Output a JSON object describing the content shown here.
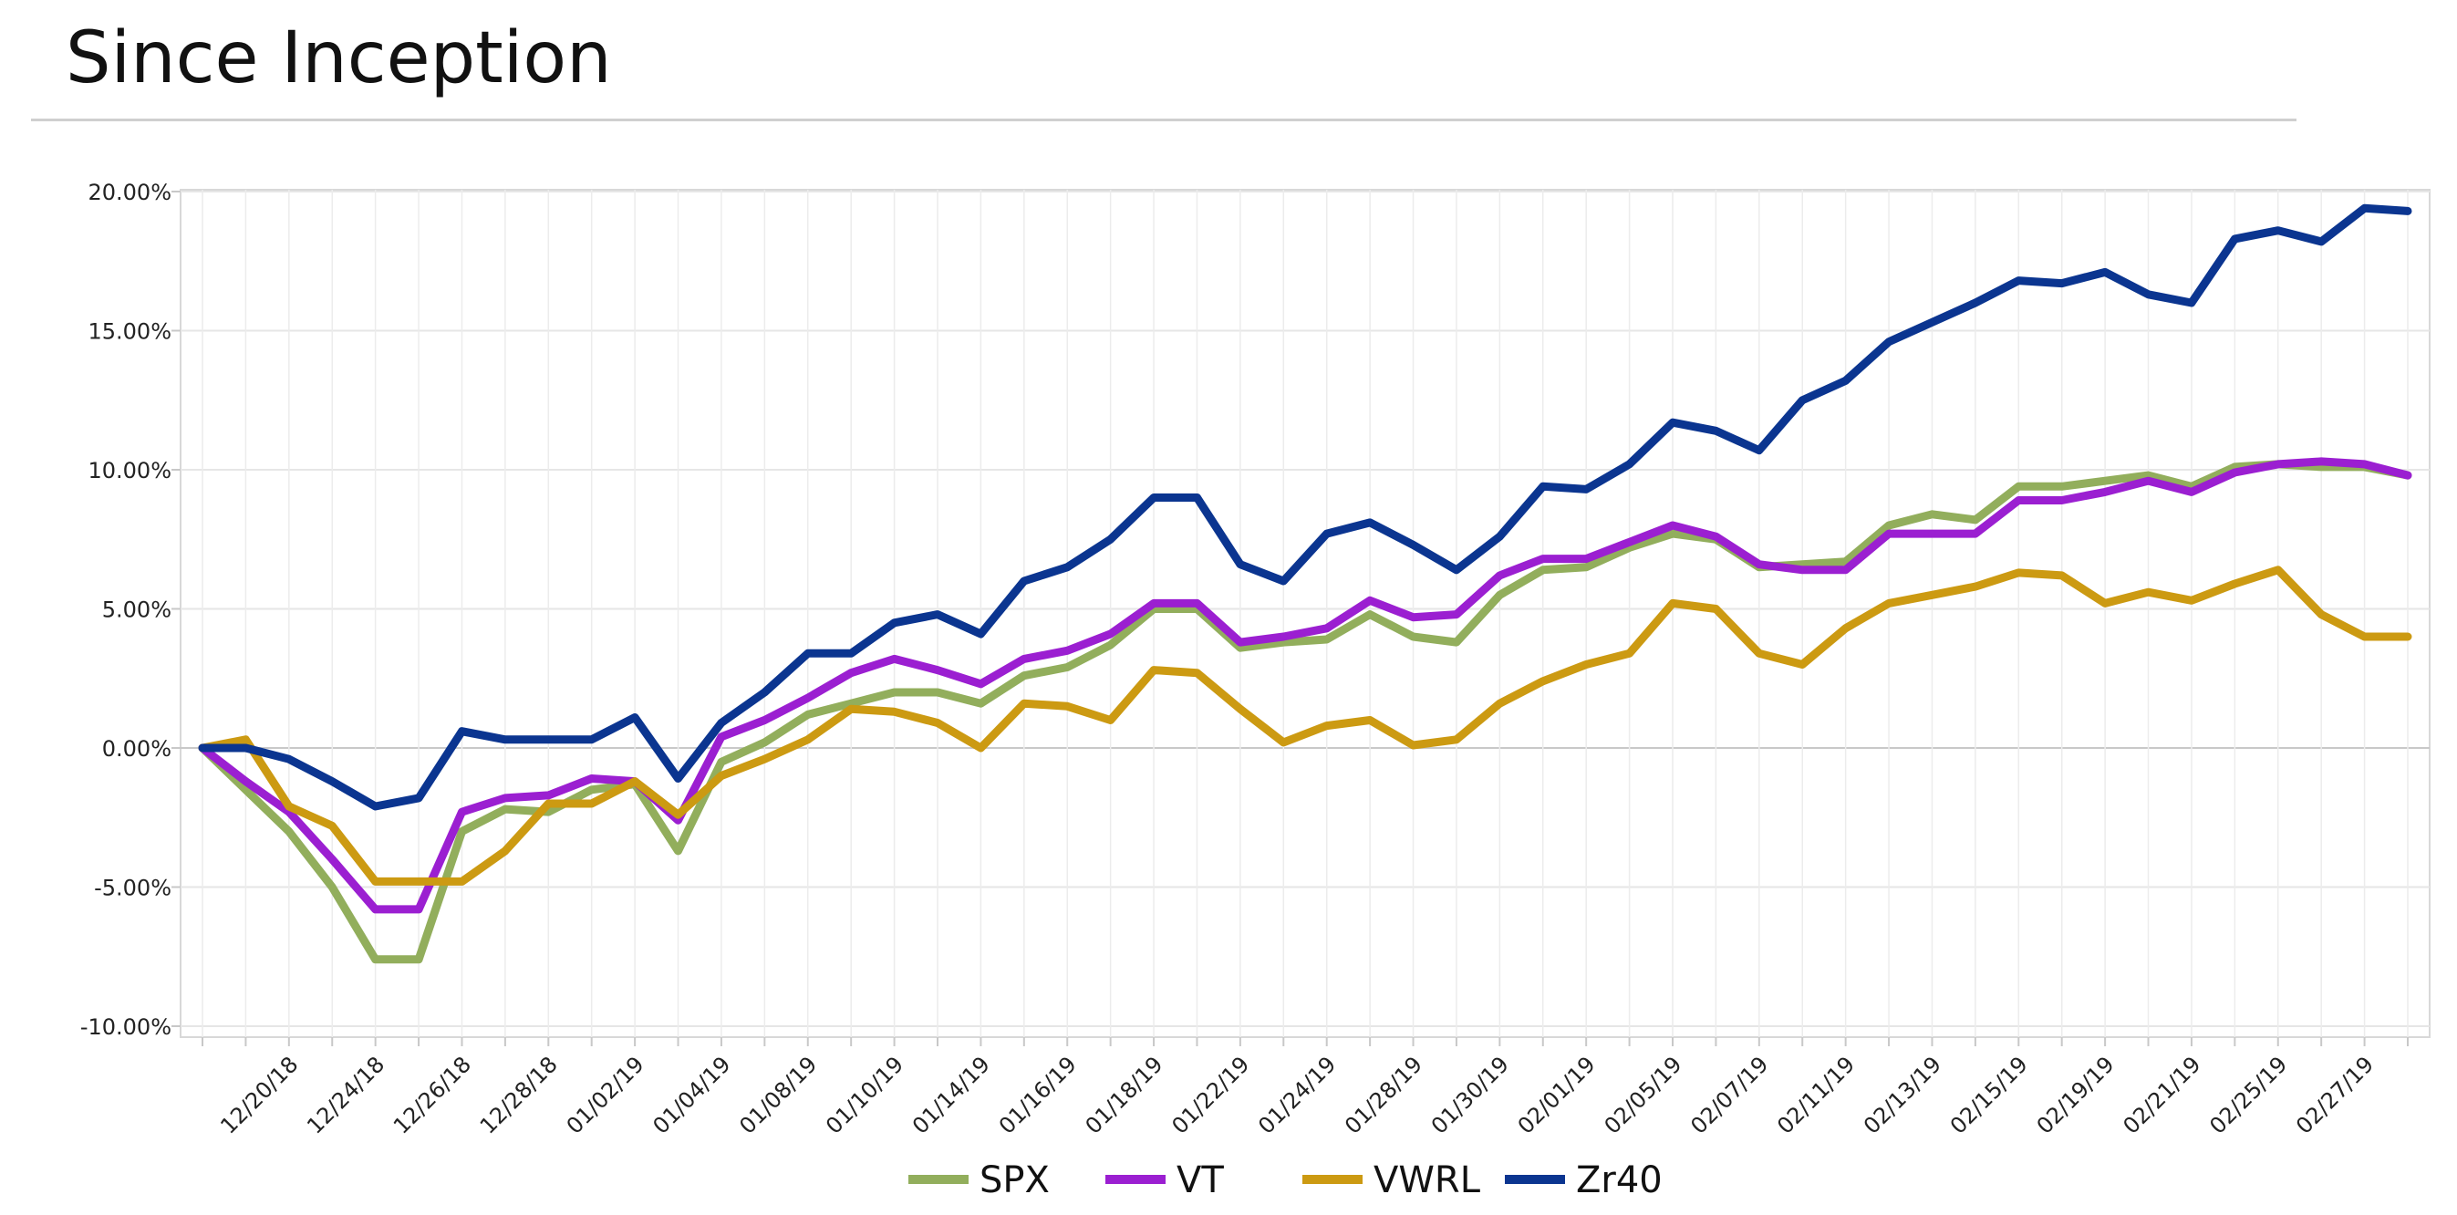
{
  "title": "Since Inception",
  "colors": {
    "SPX": "#92ae5c",
    "VT": "#9b1fd1",
    "VWRL": "#cc9a12",
    "Zr40": "#0b3590"
  },
  "chart_data": {
    "type": "line",
    "title": "Since Inception",
    "xlabel": "",
    "ylabel": "",
    "ylim": [
      -10,
      20
    ],
    "y_ticks": [
      "20.00%",
      "15.00%",
      "10.00%",
      "5.00%",
      "0.00%",
      "-5.00%",
      "-10.00%"
    ],
    "y_tick_values": [
      20,
      15,
      10,
      5,
      0,
      -5,
      -10
    ],
    "x_tick_labels": [
      "12/20/18",
      "12/24/18",
      "12/26/18",
      "12/28/18",
      "01/02/19",
      "01/04/19",
      "01/08/19",
      "01/10/19",
      "01/14/19",
      "01/16/19",
      "01/18/19",
      "01/22/19",
      "01/24/19",
      "01/28/19",
      "01/30/19",
      "02/01/19",
      "02/05/19",
      "02/07/19",
      "02/11/19",
      "02/13/19",
      "02/15/19",
      "02/19/19",
      "02/21/19",
      "02/25/19",
      "02/27/19"
    ],
    "grid": true,
    "legend_position": "bottom-center",
    "series": [
      {
        "name": "SPX",
        "values": [
          0,
          -1.5,
          -3.0,
          -5.0,
          -7.6,
          -7.6,
          -3.0,
          -2.2,
          -2.3,
          -1.5,
          -1.3,
          -3.7,
          -0.5,
          0.2,
          1.2,
          1.6,
          2.0,
          2.0,
          1.6,
          2.6,
          2.9,
          3.7,
          5.0,
          5.0,
          3.6,
          3.8,
          3.9,
          4.8,
          4.0,
          3.8,
          5.5,
          6.4,
          6.5,
          7.2,
          7.7,
          7.5,
          6.5,
          6.6,
          6.7,
          8.0,
          8.4,
          8.2,
          9.4,
          9.4,
          9.6,
          9.8,
          9.4,
          10.1,
          10.2,
          10.1,
          10.1,
          9.8
        ]
      },
      {
        "name": "VT",
        "values": [
          0,
          -1.2,
          -2.3,
          -4.0,
          -5.8,
          -5.8,
          -2.3,
          -1.8,
          -1.7,
          -1.1,
          -1.2,
          -2.6,
          0.4,
          1.0,
          1.8,
          2.7,
          3.2,
          2.8,
          2.3,
          3.2,
          3.5,
          4.1,
          5.2,
          5.2,
          3.8,
          4.0,
          4.3,
          5.3,
          4.7,
          4.8,
          6.2,
          6.8,
          6.8,
          7.4,
          8.0,
          7.6,
          6.6,
          6.4,
          6.4,
          7.7,
          7.7,
          7.7,
          8.9,
          8.9,
          9.2,
          9.6,
          9.2,
          9.9,
          10.2,
          10.3,
          10.2,
          9.8
        ]
      },
      {
        "name": "VWRL",
        "values": [
          0,
          0.3,
          -2.1,
          -2.8,
          -4.8,
          -4.8,
          -4.8,
          -3.7,
          -2.0,
          -2.0,
          -1.2,
          -2.4,
          -1.0,
          -0.4,
          0.3,
          1.4,
          1.3,
          0.9,
          0.0,
          1.6,
          1.5,
          1.0,
          2.8,
          2.7,
          1.4,
          0.2,
          0.8,
          1.0,
          0.1,
          0.3,
          1.6,
          2.4,
          3.0,
          3.4,
          5.2,
          5.0,
          3.4,
          3.0,
          4.3,
          5.2,
          5.5,
          5.8,
          6.3,
          6.2,
          5.2,
          5.6,
          5.3,
          5.9,
          6.4,
          4.8,
          4.0,
          4.0
        ]
      },
      {
        "name": "Zr40",
        "values": [
          0,
          0,
          -0.4,
          -1.2,
          -2.1,
          -1.8,
          0.6,
          0.3,
          0.3,
          0.3,
          1.1,
          -1.1,
          0.9,
          2.0,
          3.4,
          3.4,
          4.5,
          4.8,
          4.1,
          6.0,
          6.5,
          7.5,
          9.0,
          9.0,
          6.6,
          6.0,
          7.7,
          8.1,
          7.3,
          6.4,
          7.6,
          9.4,
          9.3,
          10.2,
          11.7,
          11.4,
          10.7,
          12.5,
          13.2,
          14.6,
          15.3,
          16.0,
          16.8,
          16.7,
          17.1,
          16.3,
          16.0,
          18.3,
          18.6,
          18.2,
          19.4,
          19.3
        ]
      }
    ]
  }
}
